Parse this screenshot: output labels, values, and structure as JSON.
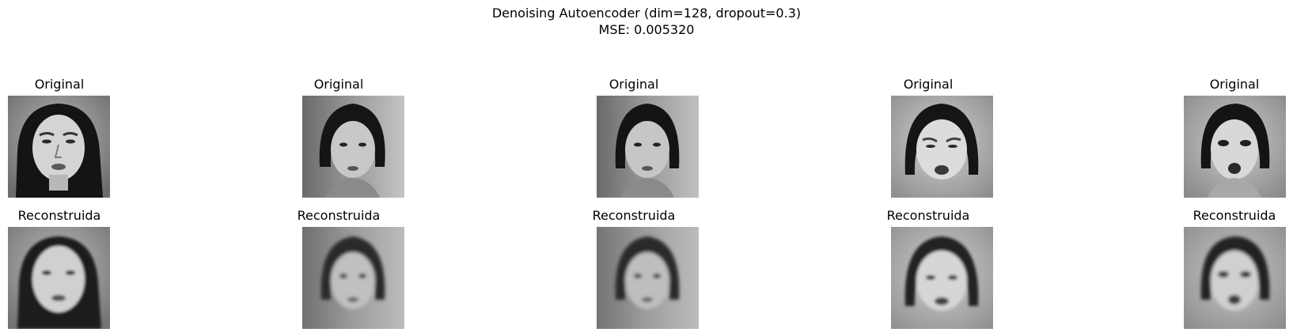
{
  "figure": {
    "title_line1": "Denoising Autoencoder (dim=128, dropout=0.3)",
    "title_line2": "MSE: 0.005320"
  },
  "columns": [
    {
      "original_label": "Original",
      "reconstructed_label": "Reconstruida"
    },
    {
      "original_label": "Original",
      "reconstructed_label": "Reconstruida"
    },
    {
      "original_label": "Original",
      "reconstructed_label": "Reconstruida"
    },
    {
      "original_label": "Original",
      "reconstructed_label": "Reconstruida"
    },
    {
      "original_label": "Original",
      "reconstructed_label": "Reconstruida"
    }
  ]
}
